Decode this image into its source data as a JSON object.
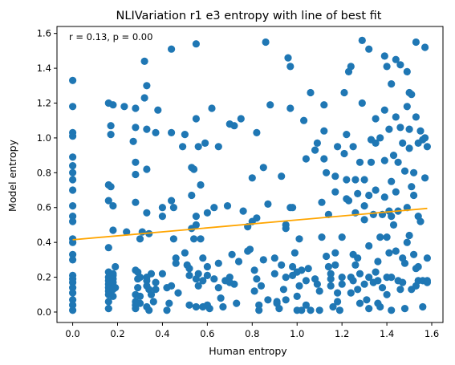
{
  "chart_data": {
    "type": "scatter",
    "title": "NLIVariation r1 e3 entropy with line of best fit",
    "xlabel": "Human entropy",
    "ylabel": "Model entropy",
    "xlim": [
      -0.07,
      1.65
    ],
    "ylim": [
      -0.06,
      1.64
    ],
    "xticks": [
      "0.0",
      "0.2",
      "0.4",
      "0.6",
      "0.8",
      "1.0",
      "1.2",
      "1.4",
      "1.6"
    ],
    "yticks": [
      "0.0",
      "0.2",
      "0.4",
      "0.6",
      "0.8",
      "1.0",
      "1.2",
      "1.4",
      "1.6"
    ],
    "annotation": "r = 0.13, p = 0.00",
    "grid": false,
    "point_color": "#1f77b4",
    "line_color": "#ffa500",
    "fit_line": {
      "x": [
        0.0,
        1.58
      ],
      "y": [
        0.415,
        0.595
      ]
    },
    "points": [
      [
        0.0,
        1.33
      ],
      [
        0.0,
        1.18
      ],
      [
        0.0,
        1.03
      ],
      [
        0.0,
        1.01
      ],
      [
        0.0,
        0.89
      ],
      [
        0.0,
        0.84
      ],
      [
        0.0,
        0.8
      ],
      [
        0.0,
        0.76
      ],
      [
        0.0,
        0.7
      ],
      [
        0.0,
        0.61
      ],
      [
        0.0,
        0.55
      ],
      [
        0.0,
        0.52
      ],
      [
        0.0,
        0.42
      ],
      [
        0.0,
        0.4
      ],
      [
        0.0,
        0.33
      ],
      [
        0.0,
        0.3
      ],
      [
        0.0,
        0.21
      ],
      [
        0.0,
        0.19
      ],
      [
        0.0,
        0.17
      ],
      [
        0.0,
        0.14
      ],
      [
        0.0,
        0.11
      ],
      [
        0.0,
        0.07
      ],
      [
        0.0,
        0.04
      ],
      [
        0.0,
        0.01
      ],
      [
        0.16,
        1.2
      ],
      [
        0.18,
        1.19
      ],
      [
        0.17,
        1.07
      ],
      [
        0.17,
        1.02
      ],
      [
        0.16,
        0.73
      ],
      [
        0.17,
        0.72
      ],
      [
        0.16,
        0.64
      ],
      [
        0.18,
        0.61
      ],
      [
        0.18,
        0.47
      ],
      [
        0.16,
        0.37
      ],
      [
        0.16,
        0.23
      ],
      [
        0.16,
        0.2
      ],
      [
        0.16,
        0.18
      ],
      [
        0.16,
        0.16
      ],
      [
        0.16,
        0.14
      ],
      [
        0.16,
        0.12
      ],
      [
        0.16,
        0.1
      ],
      [
        0.16,
        0.06
      ],
      [
        0.16,
        0.02
      ],
      [
        0.19,
        0.26
      ],
      [
        0.18,
        0.22
      ],
      [
        0.18,
        0.21
      ],
      [
        0.18,
        0.19
      ],
      [
        0.18,
        0.17
      ],
      [
        0.19,
        0.14
      ],
      [
        0.18,
        0.13
      ],
      [
        0.18,
        0.09
      ],
      [
        0.23,
        1.18
      ],
      [
        0.24,
        0.46
      ],
      [
        0.28,
        1.06
      ],
      [
        0.27,
        0.98
      ],
      [
        0.28,
        0.86
      ],
      [
        0.28,
        0.79
      ],
      [
        0.28,
        0.63
      ],
      [
        0.28,
        0.24
      ],
      [
        0.29,
        0.23
      ],
      [
        0.29,
        0.19
      ],
      [
        0.29,
        0.14
      ],
      [
        0.28,
        0.1
      ],
      [
        0.28,
        0.06
      ],
      [
        0.28,
        0.04
      ],
      [
        0.28,
        0.02
      ],
      [
        0.3,
        0.2
      ],
      [
        0.3,
        0.09
      ],
      [
        0.3,
        0.05
      ],
      [
        0.28,
        1.17
      ],
      [
        0.31,
        0.46
      ],
      [
        0.3,
        0.42
      ],
      [
        0.32,
        1.44
      ],
      [
        0.32,
        1.23
      ],
      [
        0.33,
        1.3
      ],
      [
        0.33,
        1.05
      ],
      [
        0.33,
        0.82
      ],
      [
        0.33,
        0.57
      ],
      [
        0.34,
        0.45
      ],
      [
        0.35,
        0.22
      ],
      [
        0.33,
        0.2
      ],
      [
        0.33,
        0.18
      ],
      [
        0.33,
        0.15
      ],
      [
        0.34,
        0.13
      ],
      [
        0.35,
        0.1
      ],
      [
        0.36,
        0.06
      ],
      [
        0.33,
        0.03
      ],
      [
        0.34,
        0.01
      ],
      [
        0.37,
        0.17
      ],
      [
        0.37,
        0.13
      ],
      [
        0.37,
        1.03
      ],
      [
        0.38,
        1.16
      ],
      [
        0.4,
        0.6
      ],
      [
        0.4,
        0.55
      ],
      [
        0.4,
        0.22
      ],
      [
        0.42,
        0.14
      ],
      [
        0.43,
        0.05
      ],
      [
        0.42,
        0.01
      ],
      [
        0.44,
        1.51
      ],
      [
        0.44,
        1.03
      ],
      [
        0.44,
        0.64
      ],
      [
        0.45,
        0.6
      ],
      [
        0.45,
        0.42
      ],
      [
        0.46,
        0.31
      ],
      [
        0.46,
        0.28
      ],
      [
        0.44,
        0.15
      ],
      [
        0.47,
        0.11
      ],
      [
        0.49,
        0.95
      ],
      [
        0.5,
        1.02
      ],
      [
        0.5,
        0.34
      ],
      [
        0.51,
        0.27
      ],
      [
        0.52,
        0.25
      ],
      [
        0.52,
        0.21
      ],
      [
        0.52,
        0.04
      ],
      [
        0.53,
        0.83
      ],
      [
        0.53,
        0.67
      ],
      [
        0.53,
        0.48
      ],
      [
        0.54,
        0.42
      ],
      [
        0.54,
        0.82
      ],
      [
        0.55,
        1.54
      ],
      [
        0.55,
        1.11
      ],
      [
        0.55,
        0.55
      ],
      [
        0.55,
        0.5
      ],
      [
        0.55,
        0.19
      ],
      [
        0.55,
        0.03
      ],
      [
        0.56,
        0.95
      ],
      [
        0.56,
        0.22
      ],
      [
        0.56,
        0.15
      ],
      [
        0.57,
        0.42
      ],
      [
        0.57,
        0.73
      ],
      [
        0.58,
        0.31
      ],
      [
        0.58,
        0.18
      ],
      [
        0.58,
        0.03
      ],
      [
        0.59,
        0.97
      ],
      [
        0.6,
        0.21
      ],
      [
        0.6,
        0.57
      ],
      [
        0.6,
        0.26
      ],
      [
        0.6,
        0.04
      ],
      [
        0.61,
        0.02
      ],
      [
        0.62,
        1.17
      ],
      [
        0.63,
        0.6
      ],
      [
        0.63,
        0.19
      ],
      [
        0.65,
        0.28
      ],
      [
        0.65,
        0.14
      ],
      [
        0.65,
        0.95
      ],
      [
        0.66,
        0.08
      ],
      [
        0.67,
        0.03
      ],
      [
        0.68,
        0.18
      ],
      [
        0.69,
        0.61
      ],
      [
        0.7,
        0.2
      ],
      [
        0.7,
        1.08
      ],
      [
        0.7,
        0.17
      ],
      [
        0.71,
        0.33
      ],
      [
        0.72,
        1.07
      ],
      [
        0.72,
        0.16
      ],
      [
        0.73,
        0.05
      ],
      [
        0.74,
        0.29
      ],
      [
        0.75,
        1.11
      ],
      [
        0.76,
        0.58
      ],
      [
        0.78,
        0.49
      ],
      [
        0.78,
        0.35
      ],
      [
        0.79,
        0.36
      ],
      [
        0.8,
        0.52
      ],
      [
        0.8,
        0.77
      ],
      [
        0.81,
        0.24
      ],
      [
        0.82,
        0.54
      ],
      [
        0.82,
        0.19
      ],
      [
        0.81,
        0.12
      ],
      [
        0.82,
        1.03
      ],
      [
        0.83,
        0.04
      ],
      [
        0.83,
        0.01
      ],
      [
        0.84,
        0.15
      ],
      [
        0.85,
        0.3
      ],
      [
        0.85,
        0.83
      ],
      [
        0.86,
        1.55
      ],
      [
        0.87,
        0.62
      ],
      [
        0.87,
        0.07
      ],
      [
        0.88,
        1.19
      ],
      [
        0.9,
        0.31
      ],
      [
        0.9,
        0.22
      ],
      [
        0.91,
        0.06
      ],
      [
        0.91,
        0.05
      ],
      [
        0.92,
        0.02
      ],
      [
        0.93,
        0.78
      ],
      [
        0.93,
        0.27
      ],
      [
        0.94,
        0.13
      ],
      [
        0.95,
        0.48
      ],
      [
        0.95,
        0.5
      ],
      [
        0.95,
        0.2
      ],
      [
        0.95,
        0.07
      ],
      [
        0.96,
        1.46
      ],
      [
        0.97,
        1.41
      ],
      [
        0.97,
        1.17
      ],
      [
        0.97,
        0.6
      ],
      [
        0.98,
        0.6
      ],
      [
        0.98,
        0.26
      ],
      [
        0.98,
        0.21
      ],
      [
        0.99,
        0.34
      ],
      [
        1.0,
        0.09
      ],
      [
        1.0,
        0.01
      ],
      [
        1.0,
        0.23
      ],
      [
        1.01,
        0.42
      ],
      [
        1.01,
        0.15
      ],
      [
        1.02,
        0.24
      ],
      [
        1.02,
        0.01
      ],
      [
        1.03,
        1.1
      ],
      [
        1.04,
        0.18
      ],
      [
        1.04,
        0.04
      ],
      [
        1.04,
        0.88
      ],
      [
        1.05,
        0.25
      ],
      [
        1.06,
        0.01
      ],
      [
        1.06,
        1.26
      ],
      [
        1.08,
        0.93
      ],
      [
        1.09,
        0.97
      ],
      [
        1.08,
        0.19
      ],
      [
        1.09,
        0.16
      ],
      [
        1.1,
        0.12
      ],
      [
        1.1,
        0.01
      ],
      [
        1.11,
        0.63
      ],
      [
        1.11,
        0.43
      ],
      [
        1.12,
        1.19
      ],
      [
        1.12,
        1.04
      ],
      [
        1.12,
        0.88
      ],
      [
        1.13,
        0.8
      ],
      [
        1.13,
        0.32
      ],
      [
        1.14,
        0.56
      ],
      [
        1.14,
        0.26
      ],
      [
        1.15,
        0.22
      ],
      [
        1.15,
        0.19
      ],
      [
        1.15,
        0.15
      ],
      [
        1.16,
        0.03
      ],
      [
        1.17,
        0.78
      ],
      [
        1.17,
        0.69
      ],
      [
        1.17,
        0.34
      ],
      [
        1.17,
        0.27
      ],
      [
        1.18,
        0.95
      ],
      [
        1.18,
        0.11
      ],
      [
        1.18,
        0.06
      ],
      [
        1.19,
        0.01
      ],
      [
        1.2,
        0.2
      ],
      [
        1.2,
        0.43
      ],
      [
        1.2,
        0.16
      ],
      [
        1.21,
        1.26
      ],
      [
        1.21,
        0.91
      ],
      [
        1.22,
        0.76
      ],
      [
        1.22,
        0.65
      ],
      [
        1.22,
        1.02
      ],
      [
        1.23,
        1.38
      ],
      [
        1.23,
        0.64
      ],
      [
        1.24,
        1.41
      ],
      [
        1.24,
        0.2
      ],
      [
        1.24,
        0.11
      ],
      [
        1.25,
        0.95
      ],
      [
        1.25,
        0.18
      ],
      [
        1.25,
        0.33
      ],
      [
        1.26,
        0.76
      ],
      [
        1.26,
        0.57
      ],
      [
        1.26,
        0.27
      ],
      [
        1.27,
        0.68
      ],
      [
        1.27,
        0.31
      ],
      [
        1.27,
        0.13
      ],
      [
        1.28,
        0.86
      ],
      [
        1.28,
        0.22
      ],
      [
        1.28,
        0.05
      ],
      [
        1.29,
        1.56
      ],
      [
        1.29,
        1.2
      ],
      [
        1.3,
        0.76
      ],
      [
        1.3,
        0.61
      ],
      [
        1.3,
        0.53
      ],
      [
        1.3,
        0.16
      ],
      [
        1.31,
        0.07
      ],
      [
        1.32,
        1.51
      ],
      [
        1.32,
        0.67
      ],
      [
        1.32,
        0.38
      ],
      [
        1.32,
        0.2
      ],
      [
        1.32,
        0.02
      ],
      [
        1.33,
        0.99
      ],
      [
        1.33,
        0.86
      ],
      [
        1.34,
        0.56
      ],
      [
        1.34,
        0.17
      ],
      [
        1.35,
        1.11
      ],
      [
        1.35,
        0.97
      ],
      [
        1.35,
        0.7
      ],
      [
        1.35,
        0.23
      ],
      [
        1.36,
        0.29
      ],
      [
        1.36,
        0.18
      ],
      [
        1.36,
        0.05
      ],
      [
        1.37,
        1.0
      ],
      [
        1.37,
        0.43
      ],
      [
        1.37,
        0.03
      ],
      [
        1.38,
        0.56
      ],
      [
        1.38,
        0.14
      ],
      [
        1.39,
        1.16
      ],
      [
        1.39,
        1.47
      ],
      [
        1.39,
        0.87
      ],
      [
        1.39,
        0.66
      ],
      [
        1.4,
        1.41
      ],
      [
        1.4,
        0.43
      ],
      [
        1.4,
        0.2
      ],
      [
        1.4,
        0.1
      ],
      [
        1.41,
        0.58
      ],
      [
        1.41,
        0.34
      ],
      [
        1.41,
        1.05
      ],
      [
        1.42,
        1.31
      ],
      [
        1.42,
        0.75
      ],
      [
        1.42,
        0.55
      ],
      [
        1.42,
        0.2
      ],
      [
        1.42,
        0.01
      ],
      [
        1.43,
        0.9
      ],
      [
        1.43,
        0.5
      ],
      [
        1.44,
        1.45
      ],
      [
        1.44,
        1.12
      ],
      [
        1.44,
        0.69
      ],
      [
        1.44,
        0.35
      ],
      [
        1.45,
        0.86
      ],
      [
        1.45,
        0.58
      ],
      [
        1.45,
        0.18
      ],
      [
        1.46,
        1.42
      ],
      [
        1.46,
        0.13
      ],
      [
        1.46,
        1.06
      ],
      [
        1.47,
        0.97
      ],
      [
        1.47,
        0.31
      ],
      [
        1.47,
        0.17
      ],
      [
        1.48,
        0.81
      ],
      [
        1.48,
        0.28
      ],
      [
        1.48,
        0.02
      ],
      [
        1.49,
        1.38
      ],
      [
        1.49,
        1.18
      ],
      [
        1.49,
        0.6
      ],
      [
        1.49,
        0.4
      ],
      [
        1.5,
        1.26
      ],
      [
        1.5,
        1.05
      ],
      [
        1.5,
        0.94
      ],
      [
        1.5,
        0.44
      ],
      [
        1.51,
        1.25
      ],
      [
        1.51,
        0.72
      ],
      [
        1.51,
        0.13
      ],
      [
        1.52,
        0.8
      ],
      [
        1.52,
        0.67
      ],
      [
        1.52,
        0.33
      ],
      [
        1.53,
        1.55
      ],
      [
        1.53,
        1.12
      ],
      [
        1.53,
        0.25
      ],
      [
        1.53,
        0.15
      ],
      [
        1.54,
        0.97
      ],
      [
        1.54,
        0.55
      ],
      [
        1.54,
        0.26
      ],
      [
        1.54,
        0.18
      ],
      [
        1.55,
        1.04
      ],
      [
        1.55,
        0.52
      ],
      [
        1.56,
        0.99
      ],
      [
        1.56,
        0.18
      ],
      [
        1.57,
        1.52
      ],
      [
        1.57,
        1.0
      ],
      [
        1.57,
        0.77
      ],
      [
        1.58,
        0.95
      ],
      [
        1.58,
        0.31
      ],
      [
        1.58,
        0.18
      ],
      [
        1.58,
        0.17
      ],
      [
        1.56,
        0.03
      ]
    ]
  }
}
